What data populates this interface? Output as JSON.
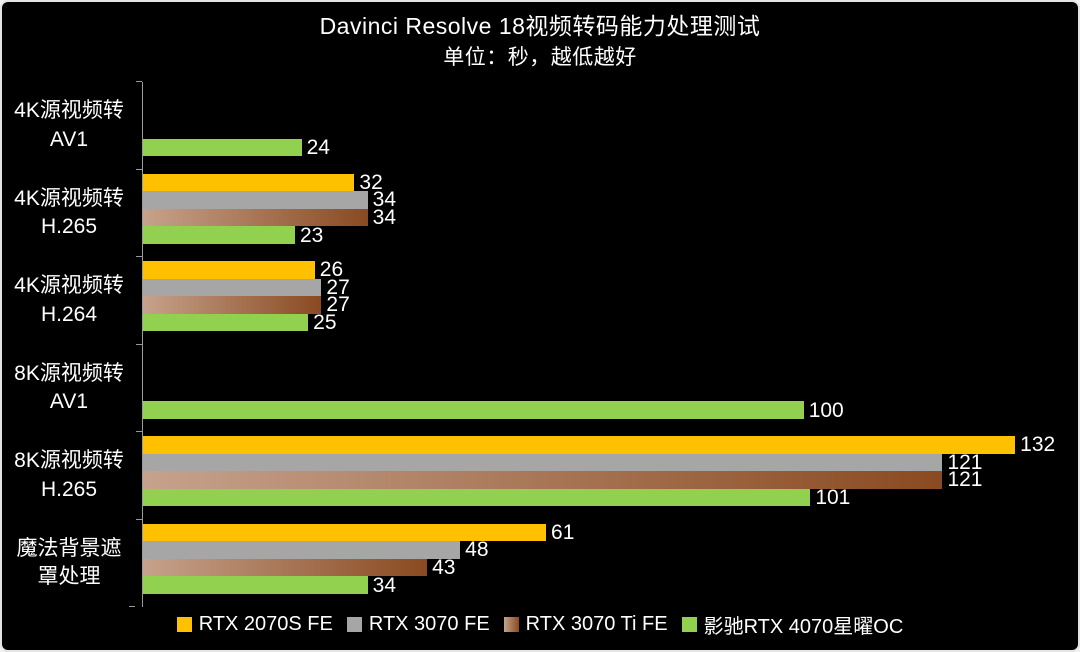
{
  "frame": {
    "background_color": "#000000",
    "border_color": "#e4e4e4",
    "text_color": "#ffffff",
    "axis_color": "#9a9a9a"
  },
  "chart_data": {
    "type": "bar",
    "orientation": "horizontal",
    "title": "Davinci Resolve 18视频转码能力处理测试",
    "subtitle": "单位：秒，越低越好",
    "unit": "秒",
    "note": "越低越好 (lower is better)",
    "grid": false,
    "legend_position": "bottom",
    "value_axis_max": 140,
    "categories": [
      [
        "4K源视频转",
        "AV1"
      ],
      [
        "4K源视频转",
        "H.265"
      ],
      [
        "4K源视频转",
        "H.264"
      ],
      [
        "8K源视频转",
        "AV1"
      ],
      [
        "8K源视频转",
        "H.265"
      ],
      [
        "魔法背景遮",
        "罩处理"
      ]
    ],
    "series": [
      {
        "name": "RTX 2070S FE",
        "color": "#FFC000",
        "values": [
          null,
          32,
          26,
          null,
          132,
          61
        ]
      },
      {
        "name": "RTX 3070 FE",
        "color": "#A6A6A6",
        "values": [
          null,
          34,
          27,
          null,
          121,
          48
        ]
      },
      {
        "name": "RTX 3070 Ti FE",
        "color_gradient": [
          "#C6A28C",
          "#8A4A21"
        ],
        "values": [
          null,
          34,
          27,
          null,
          121,
          43
        ]
      },
      {
        "name": "影驰RTX 4070星曜OC",
        "color": "#92D050",
        "values": [
          24,
          23,
          25,
          100,
          101,
          34
        ]
      }
    ]
  }
}
